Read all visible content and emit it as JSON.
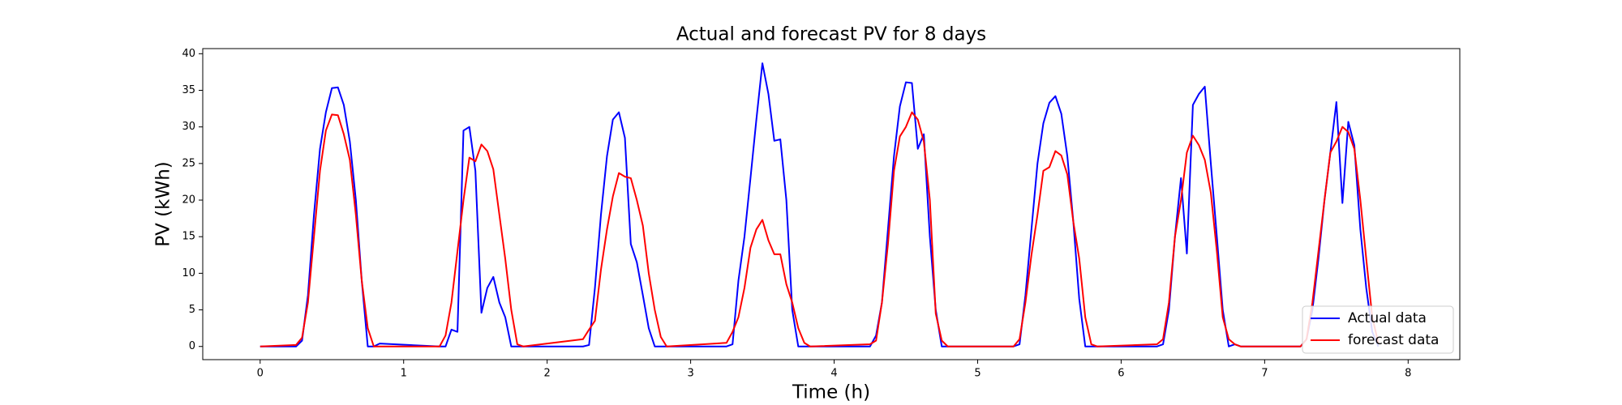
{
  "chart_data": {
    "type": "line",
    "title": "Actual and forecast PV for 8 days",
    "xlabel": "Time (h)",
    "ylabel": "PV (kWh)",
    "x": [
      0,
      0.25,
      0.292,
      0.333,
      0.375,
      0.417,
      0.458,
      0.5,
      0.542,
      0.583,
      0.625,
      0.667,
      0.708,
      0.75,
      0.792,
      0.833,
      1.25,
      1.292,
      1.333,
      1.375,
      1.417,
      1.458,
      1.5,
      1.542,
      1.583,
      1.625,
      1.667,
      1.708,
      1.75,
      1.792,
      1.833,
      2.25,
      2.292,
      2.333,
      2.375,
      2.417,
      2.458,
      2.5,
      2.542,
      2.583,
      2.625,
      2.667,
      2.708,
      2.75,
      2.792,
      2.833,
      3.25,
      3.292,
      3.333,
      3.375,
      3.417,
      3.458,
      3.5,
      3.542,
      3.583,
      3.625,
      3.667,
      3.708,
      3.75,
      3.792,
      3.833,
      4.25,
      4.292,
      4.333,
      4.375,
      4.417,
      4.458,
      4.5,
      4.542,
      4.583,
      4.625,
      4.667,
      4.708,
      4.75,
      4.792,
      4.833,
      5.25,
      5.292,
      5.333,
      5.375,
      5.417,
      5.458,
      5.5,
      5.542,
      5.583,
      5.625,
      5.667,
      5.708,
      5.75,
      5.792,
      5.833,
      6.25,
      6.292,
      6.333,
      6.375,
      6.417,
      6.458,
      6.5,
      6.542,
      6.583,
      6.625,
      6.667,
      6.708,
      6.75,
      6.792,
      6.833,
      7.25,
      7.292,
      7.333,
      7.375,
      7.417,
      7.458,
      7.5,
      7.542,
      7.583,
      7.625,
      7.667,
      7.708,
      7.75,
      7.792
    ],
    "series": [
      {
        "name": "Actual data",
        "color": "#0000ff",
        "values": [
          0,
          0,
          0.8,
          7,
          18,
          27,
          32,
          35.3,
          35.4,
          33,
          28,
          20,
          9,
          0,
          0,
          0.4,
          0,
          0,
          2.3,
          2,
          29.5,
          30,
          24,
          4.6,
          8,
          9.5,
          6,
          4,
          0,
          0,
          0,
          0,
          0.2,
          8,
          18,
          26,
          31,
          32,
          28.5,
          14,
          11.5,
          7,
          2.5,
          0,
          0,
          0,
          0,
          0.3,
          9,
          15,
          23,
          31,
          38.7,
          34.5,
          28.1,
          28.3,
          20,
          5,
          0,
          0,
          0,
          0,
          1.5,
          6,
          16,
          26,
          32.8,
          36.1,
          36,
          27,
          29,
          15,
          5,
          0,
          0,
          0,
          0,
          0.3,
          7,
          16,
          25,
          30.5,
          33.3,
          34.2,
          31.8,
          26,
          17,
          6.5,
          0,
          0,
          0,
          0,
          0.3,
          5,
          15,
          23,
          12.7,
          33,
          34.5,
          35.5,
          25,
          15,
          5,
          0,
          0.3,
          0,
          0,
          1,
          5,
          12,
          20,
          26.5,
          33.4,
          19.6,
          30.7,
          27.5,
          16,
          8,
          2,
          0
        ]
      },
      {
        "name": "forecast data",
        "color": "#ff0000",
        "values": [
          0,
          0.2,
          1.2,
          6,
          15,
          24,
          29.5,
          31.7,
          31.6,
          29,
          25.5,
          18,
          9,
          2.5,
          0,
          0,
          0,
          1.5,
          6,
          13,
          20,
          25.8,
          25.3,
          27.6,
          26.7,
          24.2,
          18,
          12,
          5,
          0.3,
          0,
          1,
          2.3,
          3.5,
          10.5,
          16,
          20.5,
          23.7,
          23.2,
          23,
          20,
          16.5,
          10,
          5,
          1.3,
          0,
          0.5,
          2,
          4,
          8,
          13.5,
          16,
          17.3,
          14.5,
          12.6,
          12.6,
          8.5,
          6,
          2.5,
          0.5,
          0,
          0.3,
          0.8,
          6,
          14,
          24,
          28.7,
          30,
          32,
          31,
          28,
          20,
          4.5,
          0.8,
          0,
          0,
          0,
          1,
          6,
          12.5,
          18,
          24,
          24.5,
          26.7,
          26.1,
          23.5,
          17,
          12,
          4,
          0.3,
          0,
          0.3,
          1,
          6,
          15,
          20,
          26.5,
          28.8,
          27.5,
          25.5,
          21,
          13,
          4,
          1,
          0.3,
          0,
          0,
          1,
          6,
          13,
          20,
          26.5,
          28,
          30,
          29.3,
          27,
          20,
          12,
          4,
          0.5
        ]
      }
    ],
    "xlim": [
      -0.4,
      8.36
    ],
    "ylim": [
      -1.8,
      40.7
    ],
    "xticks": [
      0,
      1,
      2,
      3,
      4,
      5,
      6,
      7,
      8
    ],
    "yticks": [
      0,
      5,
      10,
      15,
      20,
      25,
      30,
      35,
      40
    ],
    "legend": "lower right"
  }
}
